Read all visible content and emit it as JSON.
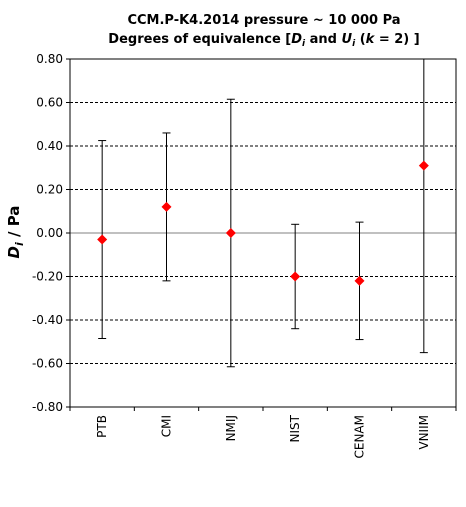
{
  "chart_data": {
    "type": "scatter",
    "title": "CCM.P-K4.2014  pressure ~ 10 000 Pa",
    "subtitle": {
      "prefix": "Degrees of equivalence [",
      "d_symbol": "D",
      "sub": "i",
      "mid": " and ",
      "u_symbol": "U",
      "sub2": "i",
      "paren": " (",
      "k_symbol": "k",
      "suffix": " = 2) ]"
    },
    "ylabel": {
      "symbol": "D",
      "sub": "i",
      "unit": " / Pa"
    },
    "xlabel": "",
    "ylim": [
      -0.8,
      0.8
    ],
    "yticks": [
      0.8,
      0.6,
      0.4,
      0.2,
      0.0,
      -0.2,
      -0.4,
      -0.6,
      -0.8
    ],
    "ytick_labels": [
      "0.80",
      "0.60",
      "0.40",
      "0.20",
      "0.00",
      "-0.20",
      "-0.40",
      "-0.60",
      "-0.80"
    ],
    "grid": true,
    "categories": [
      "PTB",
      "CMI",
      "NMIJ",
      "NIST",
      "CENAM",
      "VNIIM"
    ],
    "values": [
      -0.03,
      0.12,
      0.0,
      -0.2,
      -0.22,
      0.31
    ],
    "uncertainties": [
      0.455,
      0.34,
      0.615,
      0.24,
      0.27,
      0.86
    ],
    "marker_color": "#ff0000",
    "error_bar_color": "#000000"
  }
}
